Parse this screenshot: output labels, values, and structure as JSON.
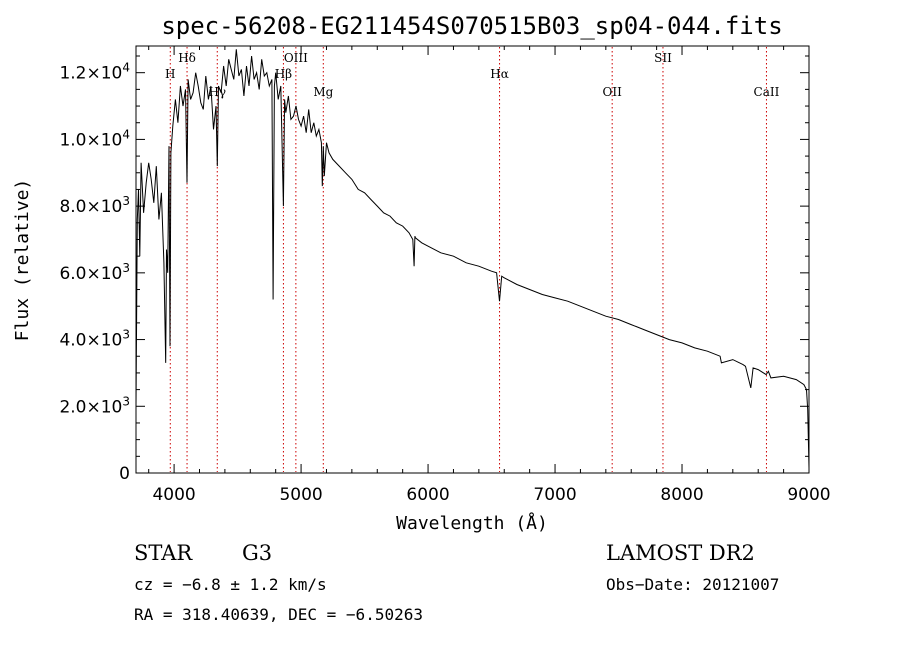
{
  "chart_data": {
    "type": "line",
    "title": "spec-56208-EG211454S070515B03_sp04-044.fits",
    "xlabel": "Wavelength (Å)",
    "ylabel": "Flux (relative)",
    "xlim": [
      3700,
      9000
    ],
    "ylim": [
      0,
      12800
    ],
    "x_ticks": [
      {
        "value": 4000,
        "label": "4000"
      },
      {
        "value": 5000,
        "label": "5000"
      },
      {
        "value": 6000,
        "label": "6000"
      },
      {
        "value": 7000,
        "label": "7000"
      },
      {
        "value": 8000,
        "label": "8000"
      },
      {
        "value": 9000,
        "label": "9000"
      }
    ],
    "y_ticks": [
      {
        "value": 0,
        "mant": "0",
        "exp": ""
      },
      {
        "value": 2000,
        "mant": "2.0×10",
        "exp": "3"
      },
      {
        "value": 4000,
        "mant": "4.0×10",
        "exp": "3"
      },
      {
        "value": 6000,
        "mant": "6.0×10",
        "exp": "3"
      },
      {
        "value": 8000,
        "mant": "8.0×10",
        "exp": "3"
      },
      {
        "value": 10000,
        "mant": "1.0×10",
        "exp": "4"
      },
      {
        "value": 12000,
        "mant": "1.2×10",
        "exp": "4"
      }
    ],
    "grid": false,
    "series": [
      {
        "x": [
          3700,
          3710,
          3720,
          3730,
          3740,
          3760,
          3780,
          3800,
          3820,
          3840,
          3860,
          3880,
          3900,
          3920,
          3934,
          3940,
          3950,
          3960,
          3968,
          3975,
          3990,
          4010,
          4030,
          4050,
          4070,
          4090,
          4102,
          4110,
          4130,
          4150,
          4170,
          4190,
          4210,
          4230,
          4250,
          4270,
          4290,
          4310,
          4330,
          4340,
          4350,
          4370,
          4390,
          4410,
          4430,
          4450,
          4470,
          4490,
          4510,
          4530,
          4550,
          4570,
          4590,
          4610,
          4630,
          4650,
          4670,
          4690,
          4710,
          4730,
          4750,
          4770,
          4780,
          4790,
          4800,
          4820,
          4840,
          4861,
          4870,
          4880,
          4900,
          4920,
          4940,
          4960,
          4980,
          5000,
          5020,
          5040,
          5060,
          5080,
          5100,
          5120,
          5140,
          5160,
          5167,
          5175,
          5183,
          5200,
          5220,
          5250,
          5300,
          5350,
          5400,
          5450,
          5500,
          5550,
          5600,
          5650,
          5700,
          5750,
          5800,
          5850,
          5880,
          5890,
          5896,
          5900,
          5950,
          6000,
          6100,
          6200,
          6300,
          6400,
          6500,
          6540,
          6563,
          6580,
          6600,
          6700,
          6800,
          6900,
          7000,
          7100,
          7200,
          7300,
          7400,
          7500,
          7600,
          7700,
          7800,
          7900,
          8000,
          8100,
          8200,
          8300,
          8310,
          8400,
          8480,
          8500,
          8542,
          8560,
          8600,
          8662,
          8680,
          8700,
          8800,
          8900,
          8960,
          8980,
          8990,
          9000
        ],
        "y": [
          2000,
          7600,
          8500,
          6500,
          9300,
          7800,
          8700,
          9300,
          8800,
          8100,
          9200,
          7600,
          8400,
          6300,
          3300,
          6700,
          6000,
          9800,
          3800,
          9600,
          10400,
          11200,
          10500,
          11600,
          11000,
          11500,
          8700,
          11800,
          11200,
          11400,
          12000,
          11600,
          11100,
          10900,
          11900,
          11200,
          11600,
          10300,
          11000,
          9200,
          11600,
          11400,
          12200,
          11600,
          12400,
          12100,
          11800,
          12700,
          11900,
          12100,
          11300,
          12200,
          11600,
          12500,
          11800,
          12000,
          11500,
          12400,
          11900,
          12000,
          11600,
          11800,
          5200,
          11600,
          12000,
          11200,
          11600,
          8000,
          11200,
          10800,
          11300,
          10600,
          10700,
          11000,
          10600,
          10400,
          10700,
          10200,
          10900,
          10200,
          10500,
          10100,
          10300,
          9900,
          8600,
          9800,
          8900,
          9900,
          9600,
          9400,
          9200,
          9000,
          8800,
          8500,
          8400,
          8200,
          8000,
          7800,
          7700,
          7500,
          7400,
          7200,
          7000,
          6200,
          7100,
          7050,
          6900,
          6800,
          6600,
          6500,
          6300,
          6200,
          6050,
          6000,
          5150,
          5900,
          5850,
          5650,
          5500,
          5350,
          5250,
          5150,
          5000,
          4850,
          4700,
          4600,
          4450,
          4300,
          4150,
          4000,
          3900,
          3750,
          3650,
          3500,
          3300,
          3400,
          3250,
          3200,
          2550,
          3150,
          3100,
          2950,
          3050,
          2850,
          2900,
          2800,
          2650,
          2500,
          1900,
          150
        ]
      }
    ],
    "line_markers": [
      {
        "x": 3970,
        "label": "H",
        "row": 1
      },
      {
        "x": 4102,
        "label": "Hδ",
        "row": 0
      },
      {
        "x": 4340,
        "label": "Hγ",
        "row": 2
      },
      {
        "x": 4861,
        "label": "Hβ",
        "row": 1
      },
      {
        "x": 4959,
        "label": "OIII",
        "row": 0
      },
      {
        "x": 5175,
        "label": "Mg",
        "row": 2
      },
      {
        "x": 6563,
        "label": "Hα",
        "row": 1
      },
      {
        "x": 7450,
        "label": "OII",
        "row": 2
      },
      {
        "x": 7850,
        "label": "SII",
        "row": 0
      },
      {
        "x": 8665,
        "label": "CaII",
        "row": 2
      }
    ]
  },
  "info": {
    "obj_class": "STAR",
    "subclass": "G3",
    "survey": "LAMOST DR2",
    "cz": "cz = −6.8 ± 1.2 km/s",
    "obs_date": "Obs−Date: 20121007",
    "coords": "RA = 318.40639, DEC =  −6.50263"
  },
  "colors": {
    "spectrum": "#000000",
    "marker_line": "#cc0000",
    "axis": "#000000"
  }
}
